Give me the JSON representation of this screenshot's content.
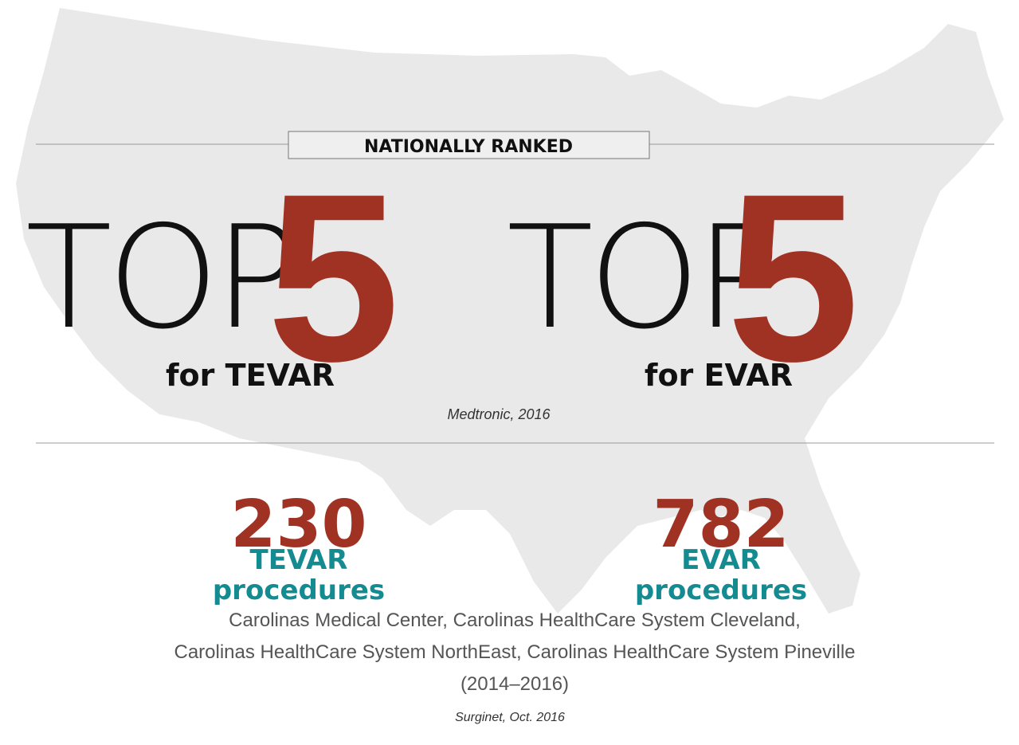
{
  "header": {
    "title": "NATIONALLY RANKED"
  },
  "rankings": [
    {
      "prefix": "TOP",
      "rank": "5",
      "label": "for TEVAR"
    },
    {
      "prefix": "TOP",
      "rank": "5",
      "label": "for EVAR"
    }
  ],
  "ranking_source": "Medtronic, 2016",
  "stats": [
    {
      "value": "230",
      "label_line1": "TEVAR",
      "label_line2": "procedures"
    },
    {
      "value": "782",
      "label_line1": "EVAR",
      "label_line2": "procedures"
    }
  ],
  "description": [
    "Carolinas Medical Center, Carolinas HealthCare System Cleveland,",
    "Carolinas HealthCare System NorthEast, Carolinas HealthCare System Pineville",
    "(2014–2016)"
  ],
  "stats_source": "Surginet, Oct. 2016"
}
